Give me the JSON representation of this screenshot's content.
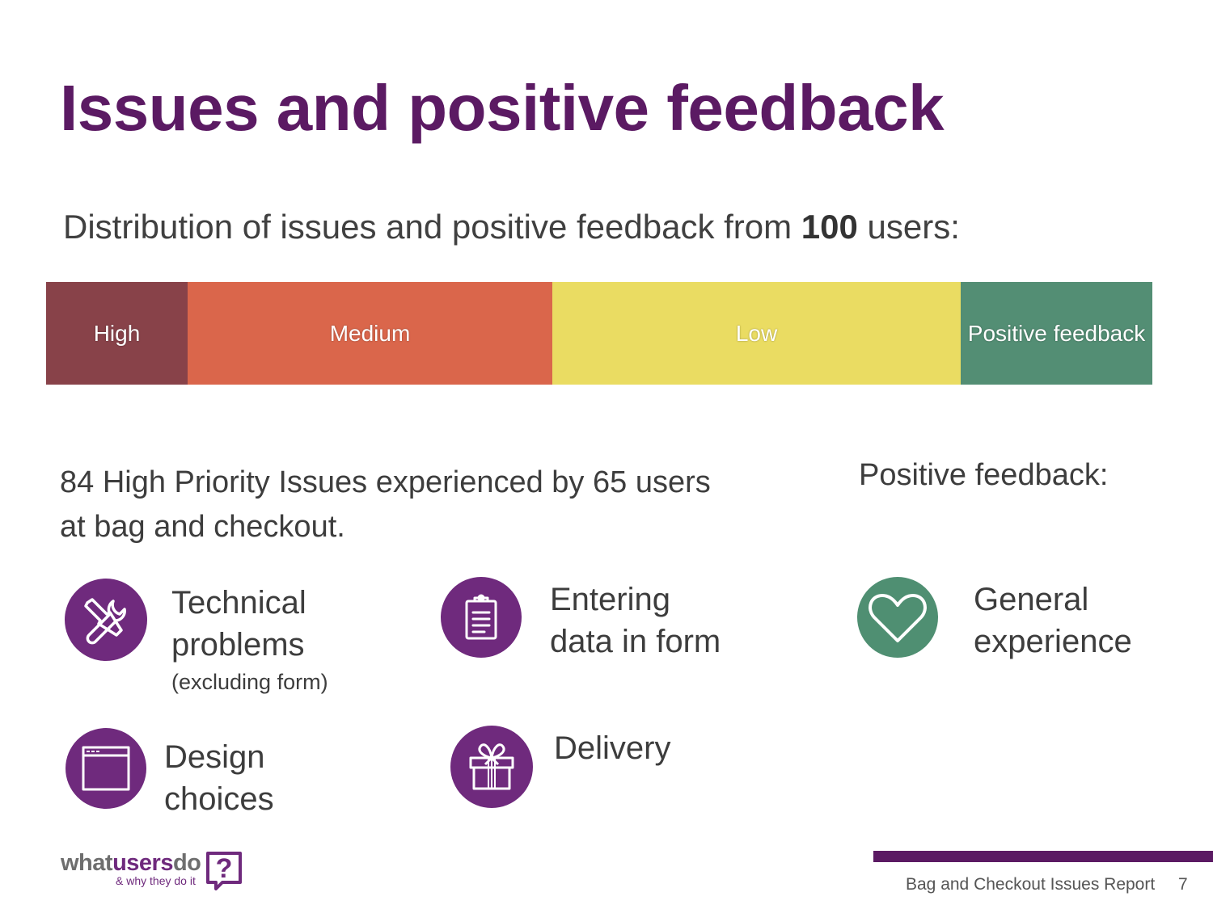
{
  "slide": {
    "title": "Issues and positive feedback",
    "subtitle_prefix": "Distribution of issues and positive feedback from",
    "subtitle_count": "100",
    "subtitle_suffix": "users:"
  },
  "distribution": {
    "segments": [
      {
        "label": "High",
        "color": "#884249"
      },
      {
        "label": "Medium",
        "color": "#da664b"
      },
      {
        "label": "Low",
        "color": "#eadc62"
      },
      {
        "label": "Positive feedback",
        "color": "#538e74"
      }
    ]
  },
  "summary": {
    "line1": "84 High Priority Issues experienced by 65 users",
    "line2": "at bag and checkout."
  },
  "positive": {
    "heading": "Positive feedback:"
  },
  "categories": {
    "technical": {
      "line1": "Technical",
      "line2": "problems",
      "note": "(excluding form)",
      "icon": "wrench-screwdriver-icon"
    },
    "entering": {
      "line1": "Entering",
      "line2": "data in form",
      "icon": "clipboard-icon"
    },
    "design": {
      "line1": "Design",
      "line2": "choices",
      "icon": "browser-window-icon"
    },
    "delivery": {
      "line1": "Delivery",
      "icon": "gift-box-icon"
    },
    "general": {
      "line1": "General",
      "line2": "experience",
      "icon": "heart-icon"
    }
  },
  "brand": {
    "logo_part1": "what",
    "logo_part2": "users",
    "logo_part3": "do",
    "tagline": "& why they do it",
    "logo_mark": "?"
  },
  "footer": {
    "report_title": "Bag and Checkout Issues Report",
    "page_number": "7"
  }
}
